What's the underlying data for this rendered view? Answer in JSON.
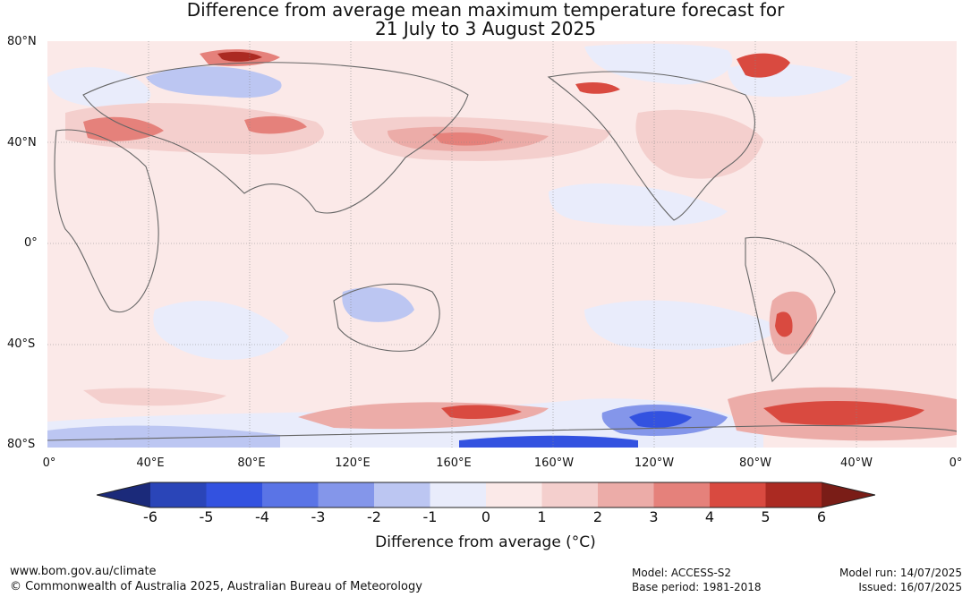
{
  "title": {
    "line1": "Difference from average mean maximum temperature forecast for",
    "line2": "21 July to 3 August 2025"
  },
  "latitude_labels": [
    "80°N",
    "40°N",
    "0°",
    "40°S",
    "80°S"
  ],
  "longitude_labels": [
    "0°",
    "40°E",
    "80°E",
    "120°E",
    "160°E",
    "160°W",
    "120°W",
    "80°W",
    "40°W",
    "0°"
  ],
  "colorbar": {
    "tick_labels": [
      "-6",
      "-5",
      "-4",
      "-3",
      "-2",
      "-1",
      "0",
      "1",
      "2",
      "3",
      "4",
      "5",
      "6"
    ],
    "colors": [
      "#1b2a7a",
      "#2a45b8",
      "#3352e0",
      "#5a74e6",
      "#8496ea",
      "#bcc6f2",
      "#e9ecfb",
      "#fbe9e8",
      "#f4cfcd",
      "#ecaca8",
      "#e5817b",
      "#d94a40",
      "#ab2a22",
      "#7a1d17"
    ],
    "label": "Difference from average (°C)"
  },
  "footer": {
    "website": "www.bom.gov.au/climate",
    "copyright": "© Commonwealth of Australia 2025, Australian Bureau of Meteorology",
    "model": "Model: ACCESS-S2",
    "base_period": "Base period: 1981-2018",
    "model_run": "Model run: 14/07/2025",
    "issued": "Issued: 16/07/2025"
  }
}
